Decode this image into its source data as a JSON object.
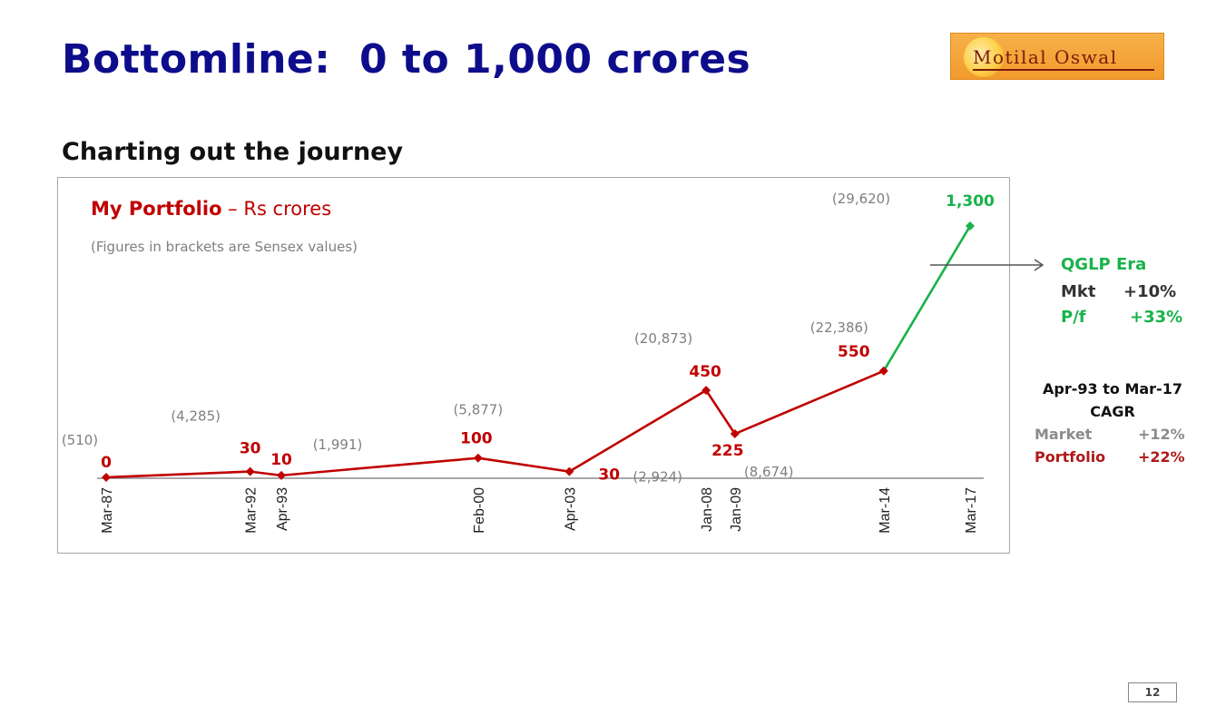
{
  "slide": {
    "title": "Bottomline:  0 to 1,000 crores",
    "subtitle": "Charting out the journey",
    "page_number": "12",
    "logo_text": "Motilal Oswal"
  },
  "colors": {
    "title": "#0d0d8c",
    "portfolio_line": "#c00000",
    "qglp_line": "#19b24b",
    "sensex_label": "#7f7f7f"
  },
  "chart_data": {
    "type": "line",
    "title_bold": "My Portfolio",
    "title_rest": " – Rs crores",
    "note": "(Figures in brackets are Sensex values)",
    "x_tick_labels": [
      "Mar-87",
      "Mar-92",
      "Apr-93",
      "Feb-00",
      "Apr-03",
      "Jan-08",
      "Jan-09",
      "Mar-14",
      "Mar-17"
    ],
    "points": [
      {
        "date": "Mar-87",
        "portfolio": 0,
        "label": "0",
        "sensex": "(510)"
      },
      {
        "date": "Mar-92",
        "portfolio": 30,
        "label": "30",
        "sensex": "(4,285)"
      },
      {
        "date": "Apr-93",
        "portfolio": 10,
        "label": "10",
        "sensex": "(1,991)"
      },
      {
        "date": "Feb-00",
        "portfolio": 100,
        "label": "100",
        "sensex": "(5,877)"
      },
      {
        "date": "Apr-03",
        "portfolio": 30,
        "label": "30",
        "sensex": "(2,924)"
      },
      {
        "date": "Jan-08",
        "portfolio": 450,
        "label": "450",
        "sensex": "(20,873)"
      },
      {
        "date": "Jan-09",
        "portfolio": 225,
        "label": "225",
        "sensex": "(8,674)"
      },
      {
        "date": "Mar-14",
        "portfolio": 550,
        "label": "550",
        "sensex": "(22,386)"
      },
      {
        "date": "Mar-17",
        "portfolio": 1300,
        "label": "1,300",
        "sensex": "(29,620)"
      }
    ],
    "series": [
      {
        "segment": "Mar-87 to Mar-14",
        "color": "#c00000"
      },
      {
        "segment": "Mar-14 to Mar-17",
        "color": "#19b24b"
      }
    ],
    "y_axis_visible": false,
    "grid": false,
    "legend": "none"
  },
  "qglp_box": {
    "heading": "QGLP Era",
    "mkt_label": "Mkt",
    "mkt_value": "+10%",
    "pf_label": "P/f",
    "pf_value": "+33%"
  },
  "cagr_box": {
    "period": "Apr-93 to Mar-17",
    "heading": "CAGR",
    "market_label": "Market",
    "market_value": "+12%",
    "portfolio_label": "Portfolio",
    "portfolio_value": "+22%"
  }
}
